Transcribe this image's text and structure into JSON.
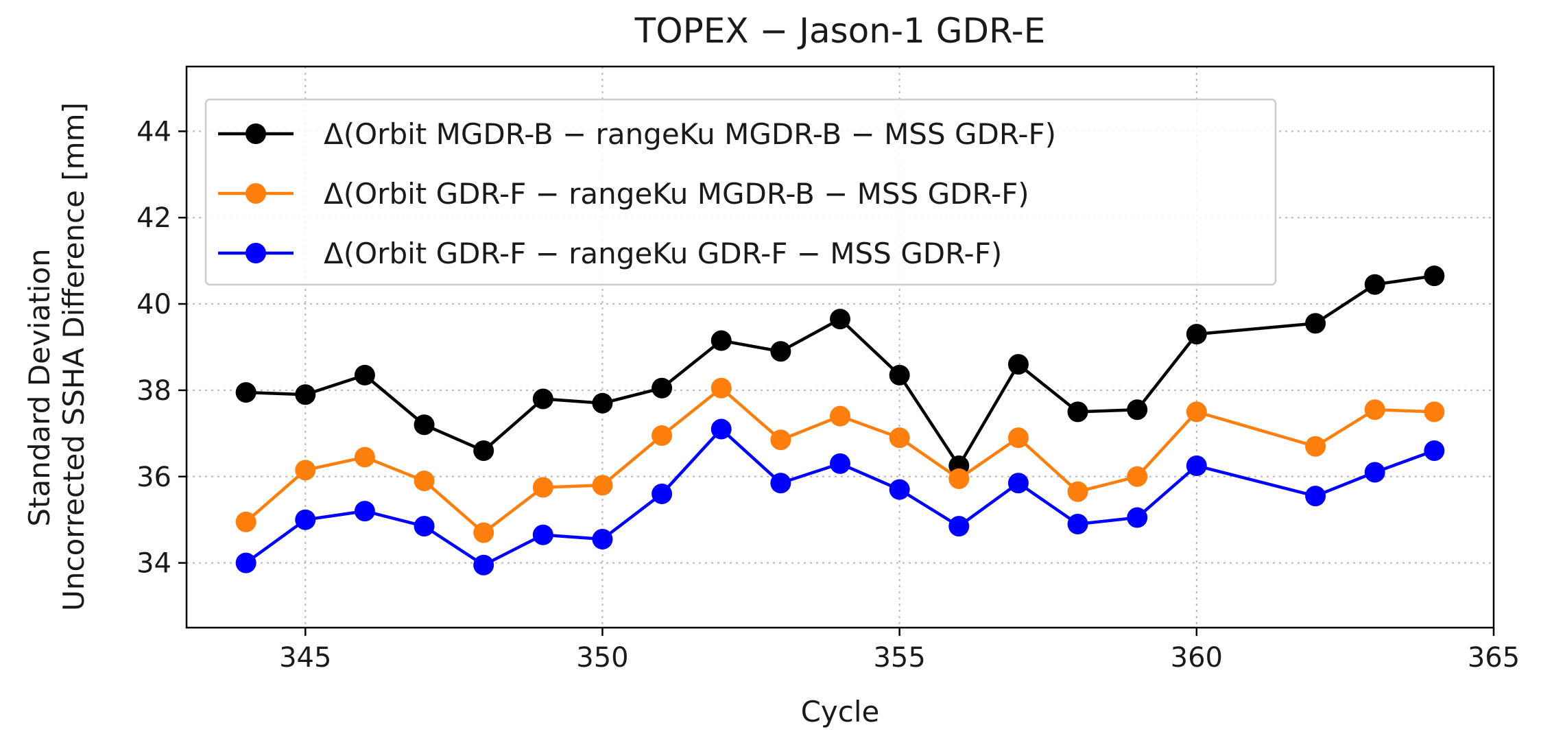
{
  "chart_data": {
    "type": "line",
    "title": "TOPEX − Jason-1 GDR-E",
    "xlabel": "Cycle",
    "ylabel_lines": [
      "Standard Deviation",
      "Uncorrected SSHA Difference [mm]"
    ],
    "xlim": [
      343,
      365
    ],
    "ylim": [
      32.5,
      45.5
    ],
    "xticks": [
      345,
      350,
      355,
      360,
      365
    ],
    "yticks": [
      34,
      36,
      38,
      40,
      42,
      44
    ],
    "grid": true,
    "legend_position": "top-left",
    "x": [
      344,
      345,
      346,
      347,
      348,
      349,
      350,
      351,
      352,
      353,
      354,
      355,
      356,
      357,
      358,
      359,
      360,
      362,
      363,
      364
    ],
    "series": [
      {
        "name": "Δ(Orbit MGDR-B − rangeKu MGDR-B − MSS GDR-F)",
        "color": "#000000",
        "values": [
          37.95,
          37.9,
          38.35,
          37.2,
          36.6,
          37.8,
          37.7,
          38.05,
          39.15,
          38.9,
          39.65,
          38.35,
          36.25,
          38.6,
          37.5,
          37.55,
          39.3,
          39.55,
          40.45,
          40.65
        ]
      },
      {
        "name": "Δ(Orbit GDR-F − rangeKu MGDR-B − MSS GDR-F)",
        "color": "#ff7f0e",
        "values": [
          34.95,
          36.15,
          36.45,
          35.9,
          34.7,
          35.75,
          35.8,
          36.95,
          38.05,
          36.85,
          37.4,
          36.9,
          35.95,
          36.9,
          35.65,
          36.0,
          37.5,
          36.7,
          37.55,
          37.5
        ]
      },
      {
        "name": "Δ(Orbit GDR-F − rangeKu GDR-F − MSS GDR-F)",
        "color": "#0000ff",
        "values": [
          34.0,
          35.0,
          35.2,
          34.85,
          33.95,
          34.65,
          34.55,
          35.6,
          37.1,
          35.85,
          36.3,
          35.7,
          34.85,
          35.85,
          34.9,
          35.05,
          36.25,
          35.55,
          36.1,
          36.6
        ]
      }
    ]
  }
}
